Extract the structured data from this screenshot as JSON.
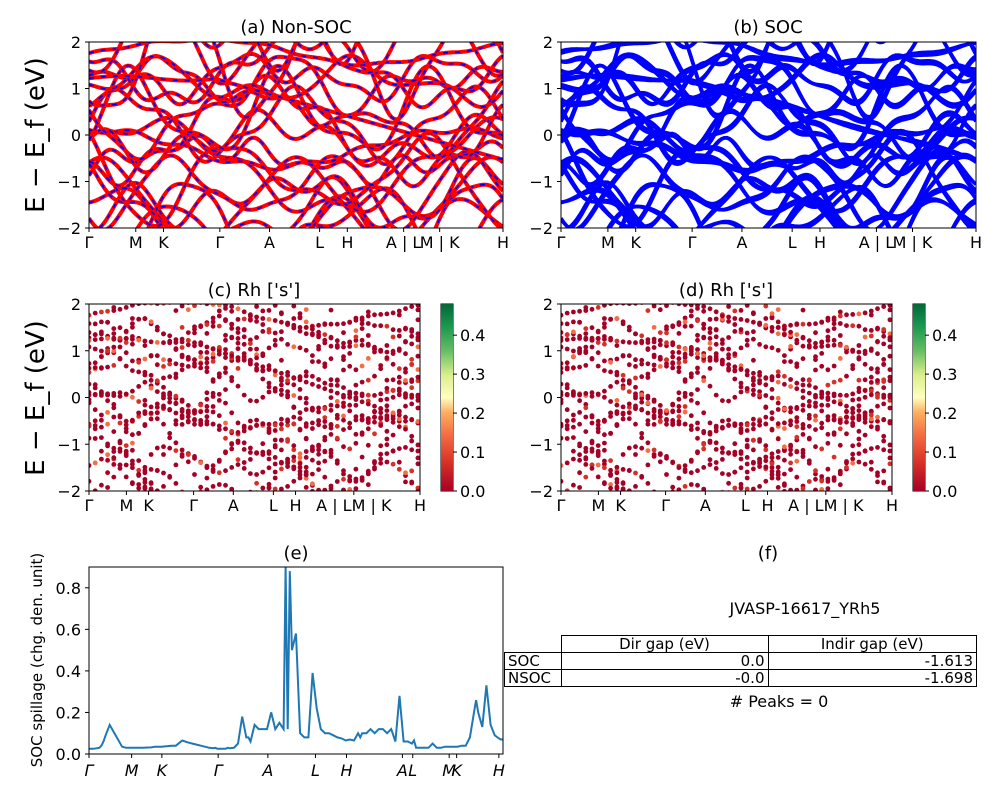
{
  "panels": {
    "a": {
      "title": "(a) Non-SOC",
      "ylabel": "E − E_f (eV)"
    },
    "b": {
      "title": "(b) SOC"
    },
    "c": {
      "title": "(c)  Rh ['s']",
      "ylabel": "E − E_f (eV)"
    },
    "d": {
      "title": "(d) Rh ['s']"
    },
    "e": {
      "title": "(e)",
      "ylabel": "SOC spillage (chg. den. unit)"
    },
    "f": {
      "title": "(f)",
      "material": "JVASP-16617_YRh5",
      "peaks": "# Peaks = 0"
    }
  },
  "kpath_labels": [
    "Γ",
    "M",
    "K",
    "Γ",
    "A",
    "L",
    "H",
    "A | L",
    "M | K",
    "H"
  ],
  "kpath_labels_cd": [
    "Γ",
    "M",
    "K",
    "Γ",
    "A",
    "L",
    "H",
    "A | LM | K",
    "H"
  ],
  "kpath_labels_e": [
    "Γ",
    "M",
    "K",
    "Γ",
    "A",
    "L",
    "H",
    "A",
    "L",
    "M",
    "K",
    "H"
  ],
  "energy_axis": {
    "ylim": [
      -2,
      2
    ],
    "ticks": [
      "−2",
      "−1",
      "0",
      "1",
      "2"
    ]
  },
  "colorbar": {
    "ticks": [
      "0.0",
      "0.1",
      "0.2",
      "0.3",
      "0.4"
    ],
    "colormap": "RdYlGn",
    "range": [
      0,
      0.48
    ]
  },
  "colors": {
    "nonsoc_a": "#0000ff",
    "nonsoc_b": "#ff0000",
    "soc": "#0000ff",
    "spillage": "#1f77b4"
  },
  "table": {
    "headers": [
      "",
      "Dir gap (eV)",
      "Indir gap (eV)"
    ],
    "rows": [
      {
        "label": "SOC",
        "dir": "0.0",
        "indir": "-1.613"
      },
      {
        "label": "NSOC",
        "dir": "-0.0",
        "indir": "-1.698"
      }
    ]
  },
  "chart_data": [
    {
      "type": "line",
      "panel": "e",
      "xlabel": "",
      "ylabel": "SOC spillage (chg. den. unit)",
      "ylim": [
        0,
        0.9
      ],
      "yticks": [
        0.0,
        0.2,
        0.4,
        0.6,
        0.8
      ],
      "xticklabels": [
        "Γ",
        "M",
        "K",
        "Γ",
        "A",
        "L",
        "H",
        "A",
        "L",
        "M",
        "K",
        "H"
      ],
      "x": [
        0,
        2,
        5,
        6,
        7,
        8,
        10,
        16,
        18,
        20,
        22,
        26,
        30,
        32,
        35,
        38,
        40,
        42,
        45,
        48,
        50,
        52,
        54,
        56,
        58,
        60,
        61,
        62,
        63,
        64,
        66,
        67,
        68,
        70,
        72,
        74,
        76,
        77,
        78,
        80,
        82,
        84,
        86,
        88,
        90,
        92,
        94,
        95,
        96,
        97,
        98,
        100,
        102,
        103,
        104,
        106,
        108,
        110,
        112,
        114,
        116,
        118,
        120,
        122,
        124,
        126,
        128,
        130,
        131,
        132,
        134,
        136,
        138,
        140,
        142,
        144,
        146,
        148,
        150,
        152,
        154,
        156,
        157,
        158,
        160,
        162,
        164,
        166,
        168,
        170,
        172,
        174,
        176,
        178,
        180,
        182,
        184,
        186,
        187,
        188,
        190,
        192,
        194,
        196,
        198,
        199,
        200
      ],
      "y": [
        0.025,
        0.025,
        0.03,
        0.04,
        0.06,
        0.09,
        0.14,
        0.035,
        0.03,
        0.03,
        0.03,
        0.03,
        0.032,
        0.035,
        0.035,
        0.038,
        0.04,
        0.04,
        0.065,
        0.055,
        0.05,
        0.045,
        0.04,
        0.035,
        0.03,
        0.028,
        0.03,
        0.025,
        0.025,
        0.025,
        0.025,
        0.03,
        0.028,
        0.03,
        0.05,
        0.18,
        0.08,
        0.08,
        0.06,
        0.14,
        0.12,
        0.12,
        0.12,
        0.2,
        0.12,
        0.15,
        0.12,
        0.9,
        0.12,
        0.88,
        0.5,
        0.58,
        0.1,
        0.09,
        0.08,
        0.08,
        0.39,
        0.22,
        0.12,
        0.1,
        0.1,
        0.09,
        0.08,
        0.075,
        0.065,
        0.07,
        0.065,
        0.1,
        0.08,
        0.1,
        0.1,
        0.12,
        0.1,
        0.12,
        0.12,
        0.1,
        0.12,
        0.06,
        0.28,
        0.06,
        0.06,
        0.05,
        0.065,
        0.03,
        0.03,
        0.03,
        0.03,
        0.05,
        0.03,
        0.03,
        0.035,
        0.035,
        0.035,
        0.035,
        0.04,
        0.04,
        0.08,
        0.2,
        0.26,
        0.2,
        0.13,
        0.33,
        0.14,
        0.09,
        0.075,
        0.07,
        0.07
      ]
    }
  ]
}
